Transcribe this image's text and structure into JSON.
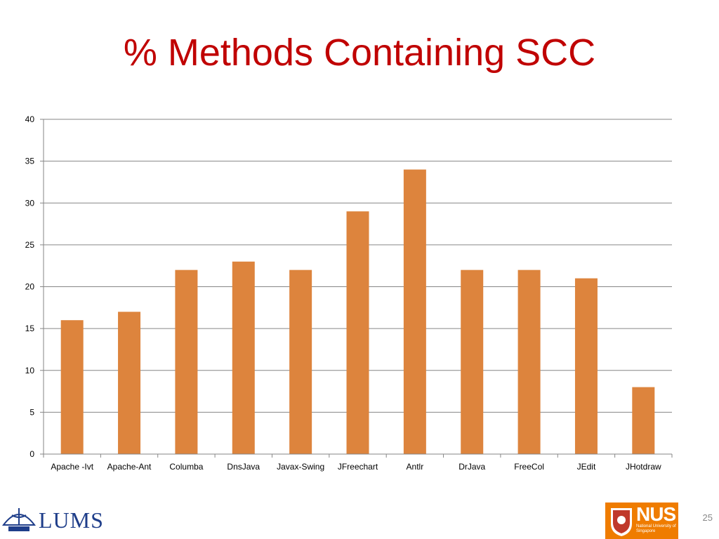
{
  "slide": {
    "title": "% Methods Containing SCC",
    "number": "25",
    "title_color": "#C00000"
  },
  "logos": {
    "left": {
      "name": "LUMS",
      "icon": "lums-emblem-icon",
      "color": "#1F3E8A"
    },
    "right": {
      "name": "NUS",
      "subtitle": "National University of Singapore",
      "icon": "nus-crest-icon",
      "color": "#EF7C00"
    }
  },
  "chart_data": {
    "type": "bar",
    "title": "",
    "xlabel": "",
    "ylabel": "",
    "categories": [
      "Apache -Ivt",
      "Apache-Ant",
      "Columba",
      "DnsJava",
      "Javax-Swing",
      "JFreechart",
      "Antlr",
      "DrJava",
      "FreeCol",
      "JEdit",
      "JHotdraw"
    ],
    "values": [
      16,
      17,
      22,
      23,
      22,
      29,
      34,
      22,
      22,
      21,
      8
    ],
    "ylim": [
      0,
      40
    ],
    "yticks": [
      0,
      5,
      10,
      15,
      20,
      25,
      30,
      35,
      40
    ],
    "grid": true,
    "legend": "none",
    "bar_color": "#DD843D"
  }
}
